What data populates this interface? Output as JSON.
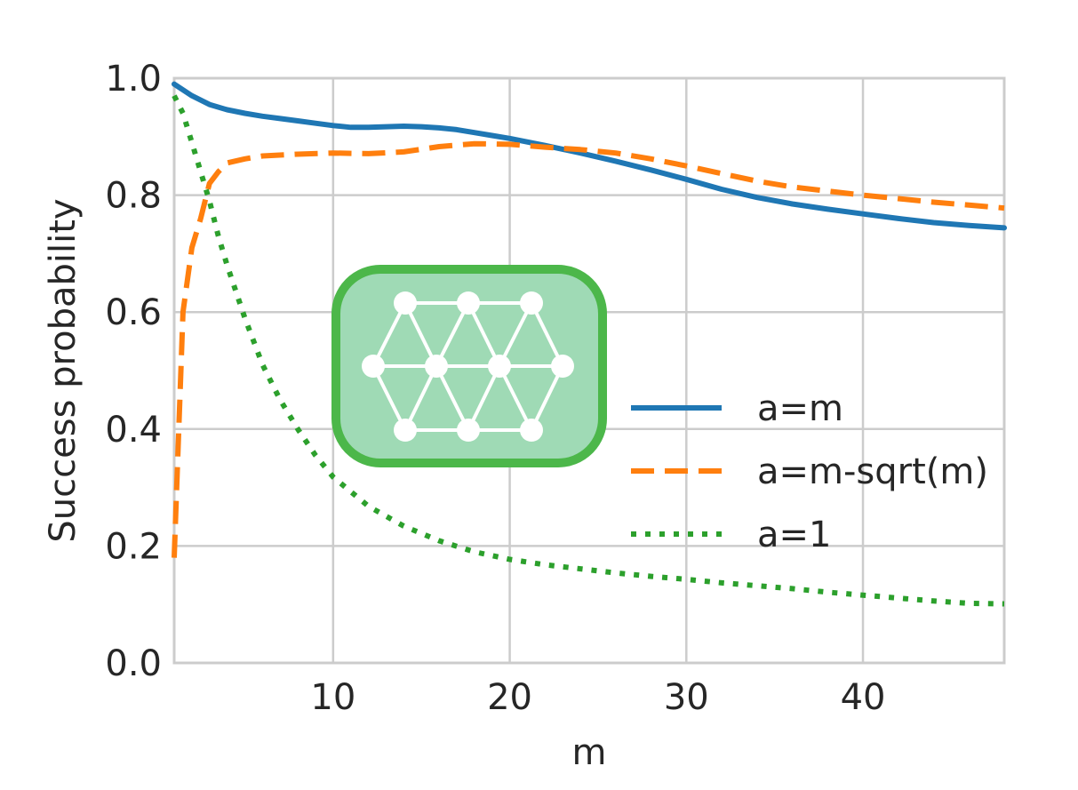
{
  "chart_data": {
    "type": "line",
    "title": "",
    "xlabel": "m",
    "ylabel": "Success probability",
    "xlim": [
      1,
      48
    ],
    "ylim": [
      0.0,
      1.0
    ],
    "xticks": [
      10,
      20,
      30,
      40
    ],
    "xtick_labels": [
      "10",
      "20",
      "30",
      "40"
    ],
    "yticks": [
      0.0,
      0.2,
      0.4,
      0.6,
      0.8,
      1.0
    ],
    "ytick_labels": [
      "0.0",
      "0.2",
      "0.4",
      "0.6",
      "0.8",
      "1.0"
    ],
    "grid": true,
    "legend_position": "center-right",
    "series": [
      {
        "name": "a=m",
        "color": "#1f77b4",
        "style": "solid",
        "x": [
          1,
          2,
          3,
          4,
          5,
          6,
          7,
          8,
          9,
          10,
          11,
          12,
          13,
          14,
          15,
          16,
          17,
          18,
          19,
          20,
          22,
          24,
          26,
          28,
          30,
          32,
          34,
          36,
          38,
          40,
          42,
          44,
          46,
          48
        ],
        "y": [
          0.99,
          0.97,
          0.955,
          0.946,
          0.94,
          0.935,
          0.931,
          0.927,
          0.923,
          0.919,
          0.916,
          0.916,
          0.917,
          0.918,
          0.917,
          0.915,
          0.912,
          0.907,
          0.902,
          0.897,
          0.885,
          0.872,
          0.858,
          0.843,
          0.827,
          0.81,
          0.796,
          0.785,
          0.776,
          0.768,
          0.76,
          0.753,
          0.748,
          0.744
        ]
      },
      {
        "name": "a=m-sqrt(m)",
        "color": "#ff7f0e",
        "style": "dashed",
        "x": [
          1,
          1.5,
          2,
          2.5,
          3,
          3.5,
          4,
          5,
          6,
          8,
          10,
          12,
          14,
          16,
          18,
          20,
          22,
          24,
          26,
          28,
          30,
          32,
          34,
          36,
          38,
          40,
          42,
          44,
          46,
          48
        ],
        "y": [
          0.18,
          0.6,
          0.71,
          0.76,
          0.82,
          0.84,
          0.855,
          0.862,
          0.867,
          0.87,
          0.872,
          0.871,
          0.874,
          0.883,
          0.888,
          0.887,
          0.882,
          0.878,
          0.872,
          0.862,
          0.85,
          0.837,
          0.824,
          0.814,
          0.807,
          0.8,
          0.794,
          0.788,
          0.783,
          0.778
        ]
      },
      {
        "name": "a=1",
        "color": "#2ca02c",
        "style": "dotted",
        "x": [
          1,
          1.5,
          2,
          2.5,
          3,
          3.5,
          4,
          5,
          6,
          7,
          8,
          9,
          10,
          12,
          14,
          16,
          18,
          20,
          22,
          24,
          26,
          28,
          30,
          32,
          34,
          36,
          38,
          40,
          42,
          44,
          46,
          48
        ],
        "y": [
          0.97,
          0.94,
          0.89,
          0.84,
          0.79,
          0.73,
          0.68,
          0.59,
          0.51,
          0.45,
          0.4,
          0.355,
          0.318,
          0.268,
          0.234,
          0.209,
          0.19,
          0.177,
          0.168,
          0.161,
          0.154,
          0.148,
          0.143,
          0.137,
          0.132,
          0.127,
          0.121,
          0.116,
          0.111,
          0.106,
          0.102,
          0.101
        ]
      }
    ]
  },
  "logo": {
    "name": "triangular-lattice-logo",
    "border_color": "#4cb74a",
    "fill_color": "#9fdab5",
    "line_color": "#ffffff"
  }
}
